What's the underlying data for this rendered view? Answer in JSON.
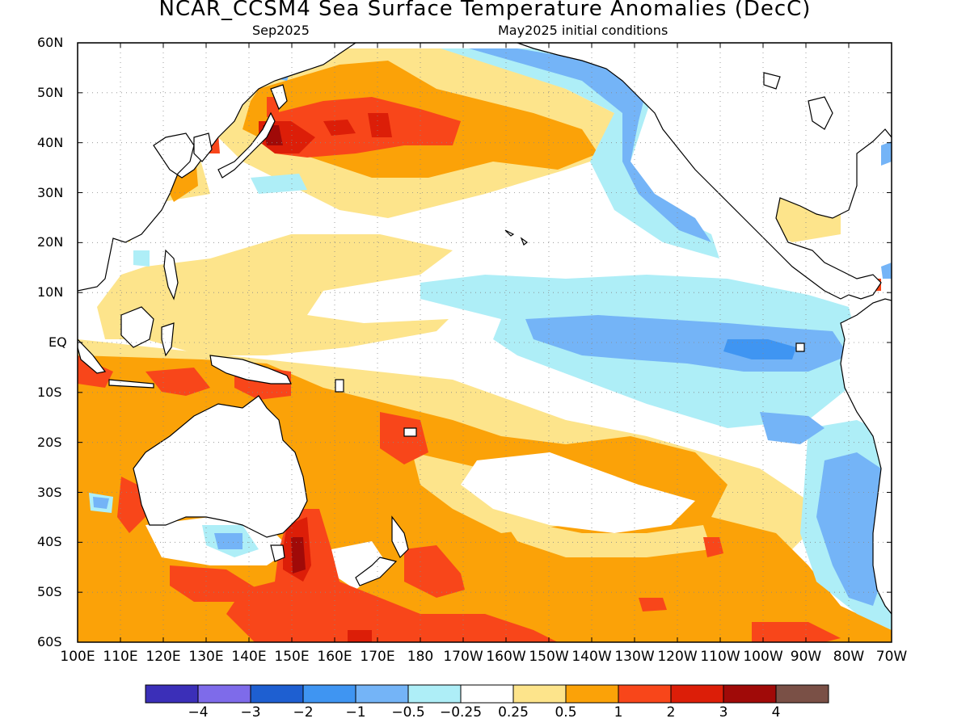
{
  "title": "NCAR_CCSM4 Sea Surface Temperature Anomalies (DecC)",
  "subtitle_left": "Sep2025",
  "subtitle_right": "May2025 initial conditions",
  "lat_ticks": [
    "60N",
    "50N",
    "40N",
    "30N",
    "20N",
    "10N",
    "EQ",
    "10S",
    "20S",
    "30S",
    "40S",
    "50S",
    "60S"
  ],
  "lon_ticks": [
    "100E",
    "110E",
    "120E",
    "130E",
    "140E",
    "150E",
    "160E",
    "170E",
    "180",
    "170W",
    "160W",
    "150W",
    "140W",
    "130W",
    "120W",
    "110W",
    "100W",
    "90W",
    "80W",
    "70W"
  ],
  "colorbar": {
    "colors": [
      "#3b2fb8",
      "#7e6bea",
      "#1e5fd1",
      "#3f95f2",
      "#74b4f7",
      "#aeeef7",
      "#ffffff",
      "#fde48b",
      "#fba208",
      "#f8461a",
      "#dc1e08",
      "#a00a08",
      "#7a5046"
    ],
    "labels": [
      "-4",
      "-3",
      "-2",
      "-1",
      "-0.5",
      "-0.25",
      "0.25",
      "0.5",
      "1",
      "2",
      "3",
      "4"
    ]
  },
  "chart_data": {
    "type": "heatmap",
    "title": "NCAR_CCSM4 Sea Surface Temperature Anomalies (DecC)",
    "subtitle": [
      "Sep2025",
      "May2025 initial conditions"
    ],
    "variable": "Sea Surface Temperature Anomalies",
    "units": "DecC",
    "xlim": [
      "100E",
      "70W"
    ],
    "ylim": [
      "60S",
      "60N"
    ],
    "grid": true,
    "levels": [
      -4,
      -3,
      -2,
      -1,
      -0.5,
      -0.25,
      0.25,
      0.5,
      1,
      2,
      3,
      4
    ],
    "features": [
      {
        "region": "North Pacific near Japan / Kuroshio extension (40N-45N, 145E-175E)",
        "anomaly_range": [
          1,
          3
        ]
      },
      {
        "region": "Central North Pacific (30N-45N, 170E-140W)",
        "anomaly_range": [
          0.5,
          1
        ]
      },
      {
        "region": "Eastern North Pacific off California (20N-45N, 130W-115W)",
        "anomaly_range": [
          -1,
          -0.25
        ]
      },
      {
        "region": "Eastern equatorial Pacific (5S-5N, 150W-80W)",
        "anomaly_range": [
          -1,
          -0.25
        ]
      },
      {
        "region": "Tasman Sea east of Tasmania (35S-50S, 150E-160E)",
        "anomaly_range": [
          2,
          3
        ]
      },
      {
        "region": "Southern Ocean south of Australia (45S-60S, 110E-170W)",
        "anomaly_range": [
          1,
          2
        ]
      },
      {
        "region": "Maritime Continent / Indonesian seas (0-15S, 100E-150E)",
        "anomaly_range": [
          1,
          2
        ]
      },
      {
        "region": "South Pacific convergence band (10S-30S, 170E-120W)",
        "anomaly_range": [
          0.5,
          1
        ]
      },
      {
        "region": "South American coast off Chile/Peru (10S-50S, 85W-72W)",
        "anomaly_range": [
          -1,
          -0.25
        ]
      }
    ]
  }
}
